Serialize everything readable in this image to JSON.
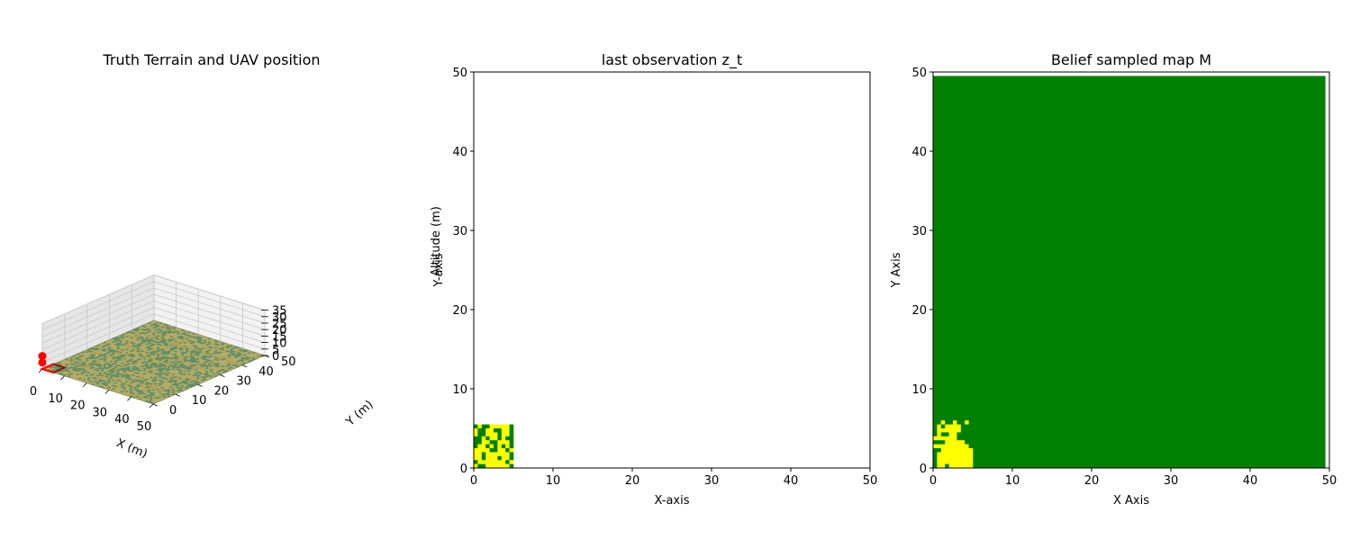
{
  "chart_data": [
    {
      "type": "surface3d",
      "title": "Truth Terrain and UAV position",
      "xlabel": "X (m)",
      "ylabel": "Y (m)",
      "zlabel": "Altitude (m)",
      "xlim": [
        0,
        50
      ],
      "ylim": [
        0,
        50
      ],
      "zlim": [
        0,
        35
      ],
      "xticks": [
        0,
        10,
        20,
        30,
        40,
        50
      ],
      "yticks": [
        0,
        10,
        20,
        30,
        40,
        50
      ],
      "zticks": [
        0,
        5,
        10,
        15,
        20,
        25,
        30,
        35
      ],
      "grid": true,
      "terrain_colors": {
        "field": "#b5ab64",
        "vegetation": "#5b8c6a"
      },
      "uav_color": "#ff0000",
      "uav_points": [
        {
          "x": 0,
          "y": 0,
          "z": 10
        },
        {
          "x": 0,
          "y": 0,
          "z": 5
        }
      ],
      "footprint": {
        "x": [
          0,
          5
        ],
        "y": [
          0,
          5
        ],
        "z": 0
      }
    },
    {
      "type": "heatmap",
      "title": "last observation z_t",
      "xlabel": "X-axis",
      "ylabel": "Y-axis",
      "xlim": [
        0,
        50
      ],
      "ylim": [
        0,
        50
      ],
      "xticks": [
        0,
        10,
        20,
        30,
        40,
        50
      ],
      "yticks": [
        0,
        10,
        20,
        30,
        40,
        50
      ],
      "background": "#ffffff",
      "colors": {
        "0": "#ffff00",
        "1": "#008000"
      },
      "observed_region": {
        "x": [
          0,
          5.5
        ],
        "y": [
          0,
          5.5
        ]
      },
      "grid_rows": [
        "1011000001",
        "0110011001",
        "0110001001",
        "1101001011",
        "1100110001",
        "1001010101",
        "0000110010",
        "0010000001",
        "0010001001",
        "1000000010",
        "0110000001"
      ]
    },
    {
      "type": "heatmap",
      "title": "Belief sampled map M",
      "xlabel": "X Axis",
      "ylabel": "Y Axis",
      "xlim": [
        0,
        50
      ],
      "ylim": [
        0,
        50
      ],
      "xticks": [
        0,
        10,
        20,
        30,
        40,
        50
      ],
      "yticks": [
        0,
        10,
        20,
        30,
        40,
        50
      ],
      "colors": {
        "0": "#ffff00",
        "1": "#008000"
      },
      "default_value": 1,
      "grid_rows": [
        "1101101101",
        "1010000111",
        "1000000111",
        "1011001111",
        "0000001111",
        "1110000011",
        "0000000001",
        "1100000000",
        "1000000000",
        "1000000000",
        "1000000000",
        "1001000000"
      ]
    }
  ]
}
